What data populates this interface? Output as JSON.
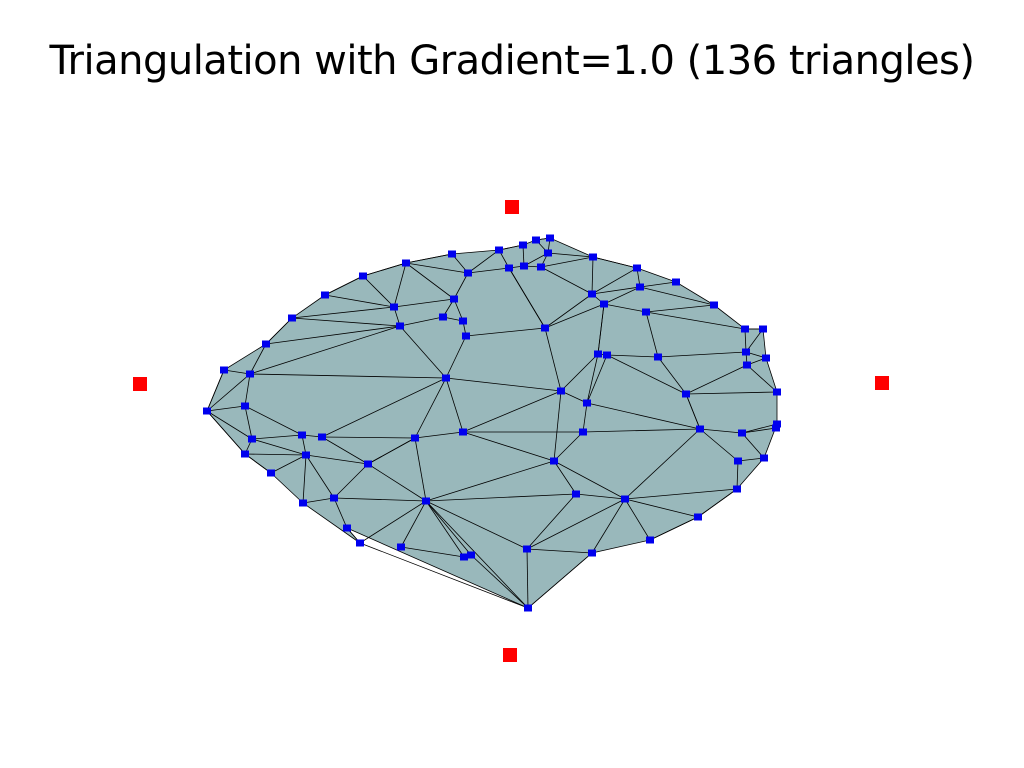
{
  "title": "Triangulation with Gradient=1.0 (136 triangles)",
  "colors": {
    "background": "#ffffff",
    "mesh_fill": "#99b8bb",
    "edge": "#000000",
    "vertex": "#0000ee",
    "constraint_point": "#ff0000"
  }
}
